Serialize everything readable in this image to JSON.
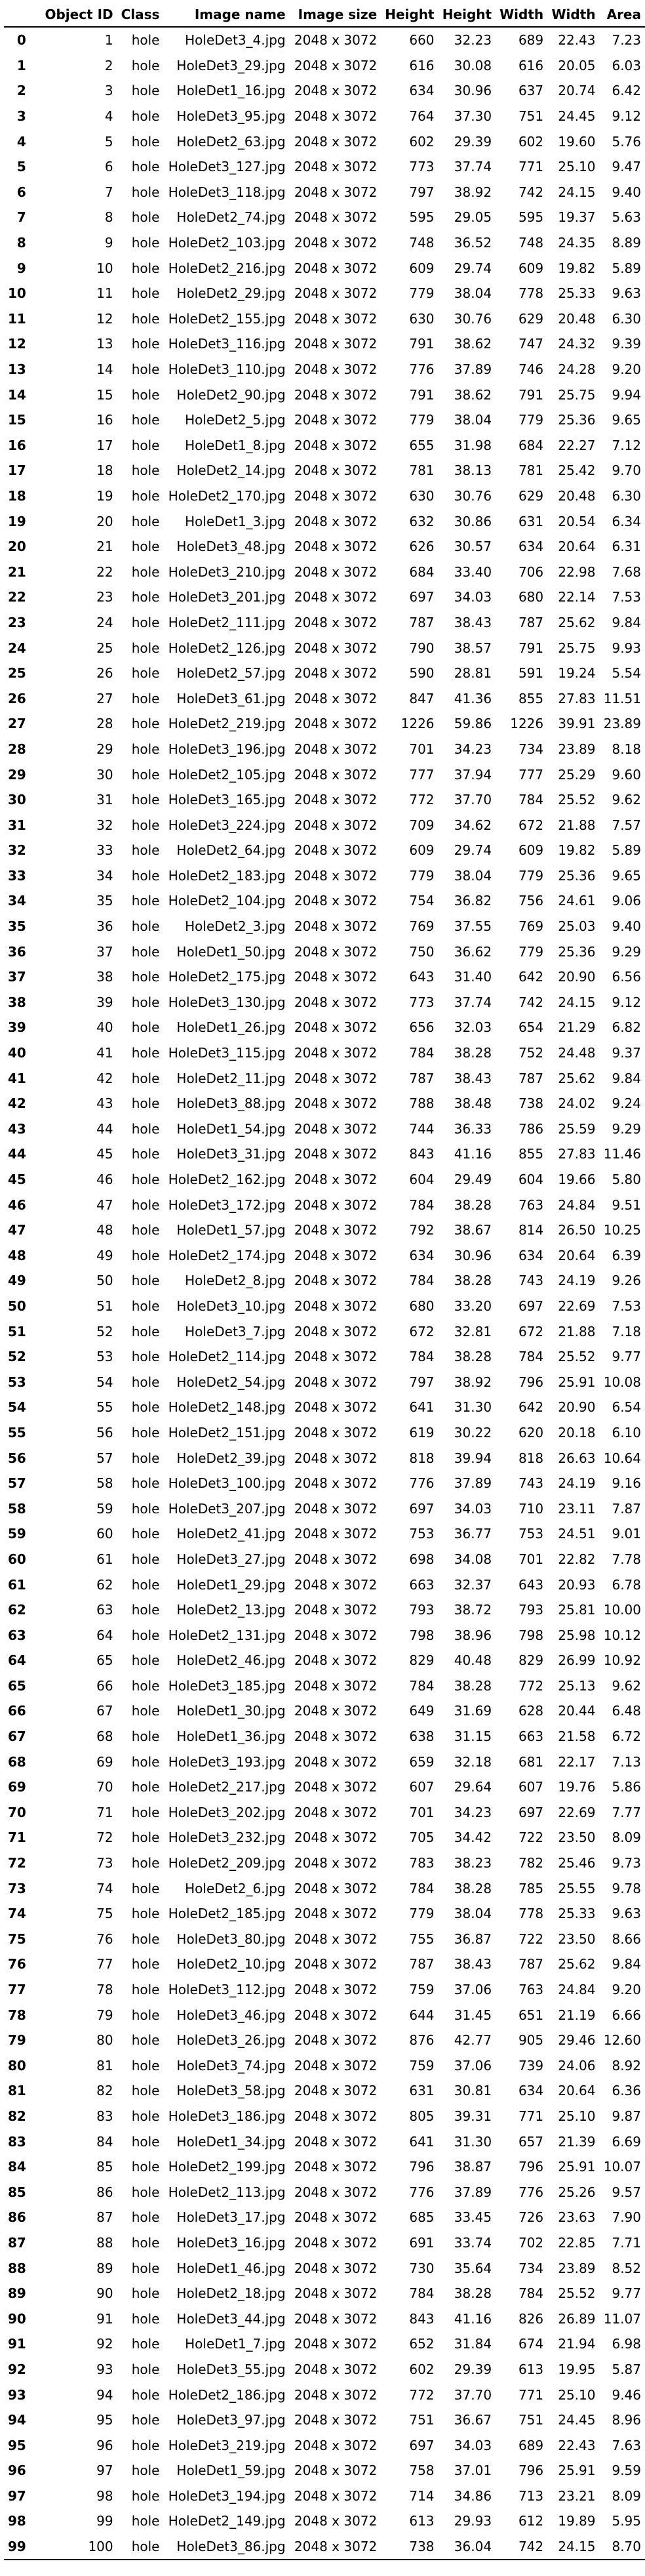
{
  "table": {
    "columns": [
      "",
      "Object ID",
      "Class",
      "Image name",
      "Image size",
      "Height",
      "Height",
      "Width",
      "Width",
      "Area"
    ],
    "rows": [
      [
        "0",
        "1",
        "hole",
        "HoleDet3_4.jpg",
        "2048 x 3072",
        "660",
        "32.23",
        "689",
        "22.43",
        "7.23"
      ],
      [
        "1",
        "2",
        "hole",
        "HoleDet3_29.jpg",
        "2048 x 3072",
        "616",
        "30.08",
        "616",
        "20.05",
        "6.03"
      ],
      [
        "2",
        "3",
        "hole",
        "HoleDet1_16.jpg",
        "2048 x 3072",
        "634",
        "30.96",
        "637",
        "20.74",
        "6.42"
      ],
      [
        "3",
        "4",
        "hole",
        "HoleDet3_95.jpg",
        "2048 x 3072",
        "764",
        "37.30",
        "751",
        "24.45",
        "9.12"
      ],
      [
        "4",
        "5",
        "hole",
        "HoleDet2_63.jpg",
        "2048 x 3072",
        "602",
        "29.39",
        "602",
        "19.60",
        "5.76"
      ],
      [
        "5",
        "6",
        "hole",
        "HoleDet3_127.jpg",
        "2048 x 3072",
        "773",
        "37.74",
        "771",
        "25.10",
        "9.47"
      ],
      [
        "6",
        "7",
        "hole",
        "HoleDet3_118.jpg",
        "2048 x 3072",
        "797",
        "38.92",
        "742",
        "24.15",
        "9.40"
      ],
      [
        "7",
        "8",
        "hole",
        "HoleDet2_74.jpg",
        "2048 x 3072",
        "595",
        "29.05",
        "595",
        "19.37",
        "5.63"
      ],
      [
        "8",
        "9",
        "hole",
        "HoleDet2_103.jpg",
        "2048 x 3072",
        "748",
        "36.52",
        "748",
        "24.35",
        "8.89"
      ],
      [
        "9",
        "10",
        "hole",
        "HoleDet2_216.jpg",
        "2048 x 3072",
        "609",
        "29.74",
        "609",
        "19.82",
        "5.89"
      ],
      [
        "10",
        "11",
        "hole",
        "HoleDet2_29.jpg",
        "2048 x 3072",
        "779",
        "38.04",
        "778",
        "25.33",
        "9.63"
      ],
      [
        "11",
        "12",
        "hole",
        "HoleDet2_155.jpg",
        "2048 x 3072",
        "630",
        "30.76",
        "629",
        "20.48",
        "6.30"
      ],
      [
        "12",
        "13",
        "hole",
        "HoleDet3_116.jpg",
        "2048 x 3072",
        "791",
        "38.62",
        "747",
        "24.32",
        "9.39"
      ],
      [
        "13",
        "14",
        "hole",
        "HoleDet3_110.jpg",
        "2048 x 3072",
        "776",
        "37.89",
        "746",
        "24.28",
        "9.20"
      ],
      [
        "14",
        "15",
        "hole",
        "HoleDet2_90.jpg",
        "2048 x 3072",
        "791",
        "38.62",
        "791",
        "25.75",
        "9.94"
      ],
      [
        "15",
        "16",
        "hole",
        "HoleDet2_5.jpg",
        "2048 x 3072",
        "779",
        "38.04",
        "779",
        "25.36",
        "9.65"
      ],
      [
        "16",
        "17",
        "hole",
        "HoleDet1_8.jpg",
        "2048 x 3072",
        "655",
        "31.98",
        "684",
        "22.27",
        "7.12"
      ],
      [
        "17",
        "18",
        "hole",
        "HoleDet2_14.jpg",
        "2048 x 3072",
        "781",
        "38.13",
        "781",
        "25.42",
        "9.70"
      ],
      [
        "18",
        "19",
        "hole",
        "HoleDet2_170.jpg",
        "2048 x 3072",
        "630",
        "30.76",
        "629",
        "20.48",
        "6.30"
      ],
      [
        "19",
        "20",
        "hole",
        "HoleDet1_3.jpg",
        "2048 x 3072",
        "632",
        "30.86",
        "631",
        "20.54",
        "6.34"
      ],
      [
        "20",
        "21",
        "hole",
        "HoleDet3_48.jpg",
        "2048 x 3072",
        "626",
        "30.57",
        "634",
        "20.64",
        "6.31"
      ],
      [
        "21",
        "22",
        "hole",
        "HoleDet3_210.jpg",
        "2048 x 3072",
        "684",
        "33.40",
        "706",
        "22.98",
        "7.68"
      ],
      [
        "22",
        "23",
        "hole",
        "HoleDet3_201.jpg",
        "2048 x 3072",
        "697",
        "34.03",
        "680",
        "22.14",
        "7.53"
      ],
      [
        "23",
        "24",
        "hole",
        "HoleDet2_111.jpg",
        "2048 x 3072",
        "787",
        "38.43",
        "787",
        "25.62",
        "9.84"
      ],
      [
        "24",
        "25",
        "hole",
        "HoleDet2_126.jpg",
        "2048 x 3072",
        "790",
        "38.57",
        "791",
        "25.75",
        "9.93"
      ],
      [
        "25",
        "26",
        "hole",
        "HoleDet2_57.jpg",
        "2048 x 3072",
        "590",
        "28.81",
        "591",
        "19.24",
        "5.54"
      ],
      [
        "26",
        "27",
        "hole",
        "HoleDet3_61.jpg",
        "2048 x 3072",
        "847",
        "41.36",
        "855",
        "27.83",
        "11.51"
      ],
      [
        "27",
        "28",
        "hole",
        "HoleDet2_219.jpg",
        "2048 x 3072",
        "1226",
        "59.86",
        "1226",
        "39.91",
        "23.89"
      ],
      [
        "28",
        "29",
        "hole",
        "HoleDet3_196.jpg",
        "2048 x 3072",
        "701",
        "34.23",
        "734",
        "23.89",
        "8.18"
      ],
      [
        "29",
        "30",
        "hole",
        "HoleDet2_105.jpg",
        "2048 x 3072",
        "777",
        "37.94",
        "777",
        "25.29",
        "9.60"
      ],
      [
        "30",
        "31",
        "hole",
        "HoleDet3_165.jpg",
        "2048 x 3072",
        "772",
        "37.70",
        "784",
        "25.52",
        "9.62"
      ],
      [
        "31",
        "32",
        "hole",
        "HoleDet3_224.jpg",
        "2048 x 3072",
        "709",
        "34.62",
        "672",
        "21.88",
        "7.57"
      ],
      [
        "32",
        "33",
        "hole",
        "HoleDet2_64.jpg",
        "2048 x 3072",
        "609",
        "29.74",
        "609",
        "19.82",
        "5.89"
      ],
      [
        "33",
        "34",
        "hole",
        "HoleDet2_183.jpg",
        "2048 x 3072",
        "779",
        "38.04",
        "779",
        "25.36",
        "9.65"
      ],
      [
        "34",
        "35",
        "hole",
        "HoleDet2_104.jpg",
        "2048 x 3072",
        "754",
        "36.82",
        "756",
        "24.61",
        "9.06"
      ],
      [
        "35",
        "36",
        "hole",
        "HoleDet2_3.jpg",
        "2048 x 3072",
        "769",
        "37.55",
        "769",
        "25.03",
        "9.40"
      ],
      [
        "36",
        "37",
        "hole",
        "HoleDet1_50.jpg",
        "2048 x 3072",
        "750",
        "36.62",
        "779",
        "25.36",
        "9.29"
      ],
      [
        "37",
        "38",
        "hole",
        "HoleDet2_175.jpg",
        "2048 x 3072",
        "643",
        "31.40",
        "642",
        "20.90",
        "6.56"
      ],
      [
        "38",
        "39",
        "hole",
        "HoleDet3_130.jpg",
        "2048 x 3072",
        "773",
        "37.74",
        "742",
        "24.15",
        "9.12"
      ],
      [
        "39",
        "40",
        "hole",
        "HoleDet1_26.jpg",
        "2048 x 3072",
        "656",
        "32.03",
        "654",
        "21.29",
        "6.82"
      ],
      [
        "40",
        "41",
        "hole",
        "HoleDet3_115.jpg",
        "2048 x 3072",
        "784",
        "38.28",
        "752",
        "24.48",
        "9.37"
      ],
      [
        "41",
        "42",
        "hole",
        "HoleDet2_11.jpg",
        "2048 x 3072",
        "787",
        "38.43",
        "787",
        "25.62",
        "9.84"
      ],
      [
        "42",
        "43",
        "hole",
        "HoleDet3_88.jpg",
        "2048 x 3072",
        "788",
        "38.48",
        "738",
        "24.02",
        "9.24"
      ],
      [
        "43",
        "44",
        "hole",
        "HoleDet1_54.jpg",
        "2048 x 3072",
        "744",
        "36.33",
        "786",
        "25.59",
        "9.29"
      ],
      [
        "44",
        "45",
        "hole",
        "HoleDet3_31.jpg",
        "2048 x 3072",
        "843",
        "41.16",
        "855",
        "27.83",
        "11.46"
      ],
      [
        "45",
        "46",
        "hole",
        "HoleDet2_162.jpg",
        "2048 x 3072",
        "604",
        "29.49",
        "604",
        "19.66",
        "5.80"
      ],
      [
        "46",
        "47",
        "hole",
        "HoleDet3_172.jpg",
        "2048 x 3072",
        "784",
        "38.28",
        "763",
        "24.84",
        "9.51"
      ],
      [
        "47",
        "48",
        "hole",
        "HoleDet1_57.jpg",
        "2048 x 3072",
        "792",
        "38.67",
        "814",
        "26.50",
        "10.25"
      ],
      [
        "48",
        "49",
        "hole",
        "HoleDet2_174.jpg",
        "2048 x 3072",
        "634",
        "30.96",
        "634",
        "20.64",
        "6.39"
      ],
      [
        "49",
        "50",
        "hole",
        "HoleDet2_8.jpg",
        "2048 x 3072",
        "784",
        "38.28",
        "743",
        "24.19",
        "9.26"
      ],
      [
        "50",
        "51",
        "hole",
        "HoleDet3_10.jpg",
        "2048 x 3072",
        "680",
        "33.20",
        "697",
        "22.69",
        "7.53"
      ],
      [
        "51",
        "52",
        "hole",
        "HoleDet3_7.jpg",
        "2048 x 3072",
        "672",
        "32.81",
        "672",
        "21.88",
        "7.18"
      ],
      [
        "52",
        "53",
        "hole",
        "HoleDet2_114.jpg",
        "2048 x 3072",
        "784",
        "38.28",
        "784",
        "25.52",
        "9.77"
      ],
      [
        "53",
        "54",
        "hole",
        "HoleDet2_54.jpg",
        "2048 x 3072",
        "797",
        "38.92",
        "796",
        "25.91",
        "10.08"
      ],
      [
        "54",
        "55",
        "hole",
        "HoleDet2_148.jpg",
        "2048 x 3072",
        "641",
        "31.30",
        "642",
        "20.90",
        "6.54"
      ],
      [
        "55",
        "56",
        "hole",
        "HoleDet2_151.jpg",
        "2048 x 3072",
        "619",
        "30.22",
        "620",
        "20.18",
        "6.10"
      ],
      [
        "56",
        "57",
        "hole",
        "HoleDet2_39.jpg",
        "2048 x 3072",
        "818",
        "39.94",
        "818",
        "26.63",
        "10.64"
      ],
      [
        "57",
        "58",
        "hole",
        "HoleDet3_100.jpg",
        "2048 x 3072",
        "776",
        "37.89",
        "743",
        "24.19",
        "9.16"
      ],
      [
        "58",
        "59",
        "hole",
        "HoleDet3_207.jpg",
        "2048 x 3072",
        "697",
        "34.03",
        "710",
        "23.11",
        "7.87"
      ],
      [
        "59",
        "60",
        "hole",
        "HoleDet2_41.jpg",
        "2048 x 3072",
        "753",
        "36.77",
        "753",
        "24.51",
        "9.01"
      ],
      [
        "60",
        "61",
        "hole",
        "HoleDet3_27.jpg",
        "2048 x 3072",
        "698",
        "34.08",
        "701",
        "22.82",
        "7.78"
      ],
      [
        "61",
        "62",
        "hole",
        "HoleDet1_29.jpg",
        "2048 x 3072",
        "663",
        "32.37",
        "643",
        "20.93",
        "6.78"
      ],
      [
        "62",
        "63",
        "hole",
        "HoleDet2_13.jpg",
        "2048 x 3072",
        "793",
        "38.72",
        "793",
        "25.81",
        "10.00"
      ],
      [
        "63",
        "64",
        "hole",
        "HoleDet2_131.jpg",
        "2048 x 3072",
        "798",
        "38.96",
        "798",
        "25.98",
        "10.12"
      ],
      [
        "64",
        "65",
        "hole",
        "HoleDet2_46.jpg",
        "2048 x 3072",
        "829",
        "40.48",
        "829",
        "26.99",
        "10.92"
      ],
      [
        "65",
        "66",
        "hole",
        "HoleDet3_185.jpg",
        "2048 x 3072",
        "784",
        "38.28",
        "772",
        "25.13",
        "9.62"
      ],
      [
        "66",
        "67",
        "hole",
        "HoleDet1_30.jpg",
        "2048 x 3072",
        "649",
        "31.69",
        "628",
        "20.44",
        "6.48"
      ],
      [
        "67",
        "68",
        "hole",
        "HoleDet1_36.jpg",
        "2048 x 3072",
        "638",
        "31.15",
        "663",
        "21.58",
        "6.72"
      ],
      [
        "68",
        "69",
        "hole",
        "HoleDet3_193.jpg",
        "2048 x 3072",
        "659",
        "32.18",
        "681",
        "22.17",
        "7.13"
      ],
      [
        "69",
        "70",
        "hole",
        "HoleDet2_217.jpg",
        "2048 x 3072",
        "607",
        "29.64",
        "607",
        "19.76",
        "5.86"
      ],
      [
        "70",
        "71",
        "hole",
        "HoleDet3_202.jpg",
        "2048 x 3072",
        "701",
        "34.23",
        "697",
        "22.69",
        "7.77"
      ],
      [
        "71",
        "72",
        "hole",
        "HoleDet3_232.jpg",
        "2048 x 3072",
        "705",
        "34.42",
        "722",
        "23.50",
        "8.09"
      ],
      [
        "72",
        "73",
        "hole",
        "HoleDet2_209.jpg",
        "2048 x 3072",
        "783",
        "38.23",
        "782",
        "25.46",
        "9.73"
      ],
      [
        "73",
        "74",
        "hole",
        "HoleDet2_6.jpg",
        "2048 x 3072",
        "784",
        "38.28",
        "785",
        "25.55",
        "9.78"
      ],
      [
        "74",
        "75",
        "hole",
        "HoleDet2_185.jpg",
        "2048 x 3072",
        "779",
        "38.04",
        "778",
        "25.33",
        "9.63"
      ],
      [
        "75",
        "76",
        "hole",
        "HoleDet3_80.jpg",
        "2048 x 3072",
        "755",
        "36.87",
        "722",
        "23.50",
        "8.66"
      ],
      [
        "76",
        "77",
        "hole",
        "HoleDet2_10.jpg",
        "2048 x 3072",
        "787",
        "38.43",
        "787",
        "25.62",
        "9.84"
      ],
      [
        "77",
        "78",
        "hole",
        "HoleDet3_112.jpg",
        "2048 x 3072",
        "759",
        "37.06",
        "763",
        "24.84",
        "9.20"
      ],
      [
        "78",
        "79",
        "hole",
        "HoleDet3_46.jpg",
        "2048 x 3072",
        "644",
        "31.45",
        "651",
        "21.19",
        "6.66"
      ],
      [
        "79",
        "80",
        "hole",
        "HoleDet3_26.jpg",
        "2048 x 3072",
        "876",
        "42.77",
        "905",
        "29.46",
        "12.60"
      ],
      [
        "80",
        "81",
        "hole",
        "HoleDet3_74.jpg",
        "2048 x 3072",
        "759",
        "37.06",
        "739",
        "24.06",
        "8.92"
      ],
      [
        "81",
        "82",
        "hole",
        "HoleDet3_58.jpg",
        "2048 x 3072",
        "631",
        "30.81",
        "634",
        "20.64",
        "6.36"
      ],
      [
        "82",
        "83",
        "hole",
        "HoleDet3_186.jpg",
        "2048 x 3072",
        "805",
        "39.31",
        "771",
        "25.10",
        "9.87"
      ],
      [
        "83",
        "84",
        "hole",
        "HoleDet1_34.jpg",
        "2048 x 3072",
        "641",
        "31.30",
        "657",
        "21.39",
        "6.69"
      ],
      [
        "84",
        "85",
        "hole",
        "HoleDet2_199.jpg",
        "2048 x 3072",
        "796",
        "38.87",
        "796",
        "25.91",
        "10.07"
      ],
      [
        "85",
        "86",
        "hole",
        "HoleDet2_113.jpg",
        "2048 x 3072",
        "776",
        "37.89",
        "776",
        "25.26",
        "9.57"
      ],
      [
        "86",
        "87",
        "hole",
        "HoleDet3_17.jpg",
        "2048 x 3072",
        "685",
        "33.45",
        "726",
        "23.63",
        "7.90"
      ],
      [
        "87",
        "88",
        "hole",
        "HoleDet3_16.jpg",
        "2048 x 3072",
        "691",
        "33.74",
        "702",
        "22.85",
        "7.71"
      ],
      [
        "88",
        "89",
        "hole",
        "HoleDet1_46.jpg",
        "2048 x 3072",
        "730",
        "35.64",
        "734",
        "23.89",
        "8.52"
      ],
      [
        "89",
        "90",
        "hole",
        "HoleDet2_18.jpg",
        "2048 x 3072",
        "784",
        "38.28",
        "784",
        "25.52",
        "9.77"
      ],
      [
        "90",
        "91",
        "hole",
        "HoleDet3_44.jpg",
        "2048 x 3072",
        "843",
        "41.16",
        "826",
        "26.89",
        "11.07"
      ],
      [
        "91",
        "92",
        "hole",
        "HoleDet1_7.jpg",
        "2048 x 3072",
        "652",
        "31.84",
        "674",
        "21.94",
        "6.98"
      ],
      [
        "92",
        "93",
        "hole",
        "HoleDet3_55.jpg",
        "2048 x 3072",
        "602",
        "29.39",
        "613",
        "19.95",
        "5.87"
      ],
      [
        "93",
        "94",
        "hole",
        "HoleDet2_186.jpg",
        "2048 x 3072",
        "772",
        "37.70",
        "771",
        "25.10",
        "9.46"
      ],
      [
        "94",
        "95",
        "hole",
        "HoleDet3_97.jpg",
        "2048 x 3072",
        "751",
        "36.67",
        "751",
        "24.45",
        "8.96"
      ],
      [
        "95",
        "96",
        "hole",
        "HoleDet3_219.jpg",
        "2048 x 3072",
        "697",
        "34.03",
        "689",
        "22.43",
        "7.63"
      ],
      [
        "96",
        "97",
        "hole",
        "HoleDet1_59.jpg",
        "2048 x 3072",
        "758",
        "37.01",
        "796",
        "25.91",
        "9.59"
      ],
      [
        "97",
        "98",
        "hole",
        "HoleDet3_194.jpg",
        "2048 x 3072",
        "714",
        "34.86",
        "713",
        "23.21",
        "8.09"
      ],
      [
        "98",
        "99",
        "hole",
        "HoleDet2_149.jpg",
        "2048 x 3072",
        "613",
        "29.93",
        "612",
        "19.89",
        "5.95"
      ],
      [
        "99",
        "100",
        "hole",
        "HoleDet3_86.jpg",
        "2048 x 3072",
        "738",
        "36.04",
        "742",
        "24.15",
        "8.70"
      ]
    ]
  }
}
